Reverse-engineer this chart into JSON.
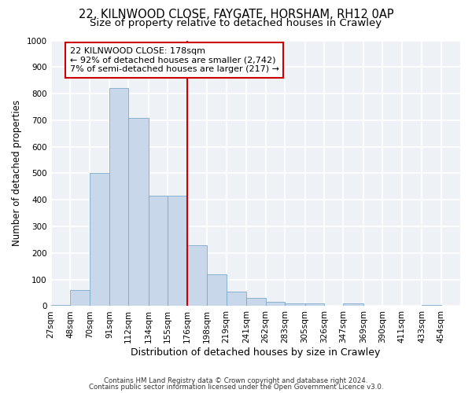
{
  "title1": "22, KILNWOOD CLOSE, FAYGATE, HORSHAM, RH12 0AP",
  "title2": "Size of property relative to detached houses in Crawley",
  "xlabel": "Distribution of detached houses by size in Crawley",
  "ylabel": "Number of detached properties",
  "bar_color": "#c8d8ea",
  "bar_edge_color": "#7aaac8",
  "vline_color": "#cc0000",
  "vline_x": 176,
  "categories": [
    "27sqm",
    "48sqm",
    "70sqm",
    "91sqm",
    "112sqm",
    "134sqm",
    "155sqm",
    "176sqm",
    "198sqm",
    "219sqm",
    "241sqm",
    "262sqm",
    "283sqm",
    "305sqm",
    "326sqm",
    "347sqm",
    "369sqm",
    "390sqm",
    "411sqm",
    "433sqm",
    "454sqm"
  ],
  "bin_edges": [
    27,
    48,
    70,
    91,
    112,
    134,
    155,
    176,
    198,
    219,
    241,
    262,
    283,
    305,
    326,
    347,
    369,
    390,
    411,
    433,
    454
  ],
  "bar_heights": [
    5,
    60,
    500,
    820,
    710,
    415,
    415,
    230,
    120,
    55,
    30,
    15,
    10,
    10,
    0,
    10,
    0,
    0,
    0,
    5,
    0
  ],
  "annotation_line1": "22 KILNWOOD CLOSE: 178sqm",
  "annotation_line2": "← 92% of detached houses are smaller (2,742)",
  "annotation_line3": "7% of semi-detached houses are larger (217) →",
  "ylim": [
    0,
    1000
  ],
  "yticks": [
    0,
    100,
    200,
    300,
    400,
    500,
    600,
    700,
    800,
    900,
    1000
  ],
  "footnote1": "Contains HM Land Registry data © Crown copyright and database right 2024.",
  "footnote2": "Contains public sector information licensed under the Open Government Licence v3.0.",
  "background_color": "#eef2f7",
  "grid_color": "#ffffff",
  "title1_fontsize": 10.5,
  "title2_fontsize": 9.5,
  "annotation_fontsize": 8,
  "ylabel_fontsize": 8.5,
  "xlabel_fontsize": 9,
  "tick_fontsize": 7.5
}
